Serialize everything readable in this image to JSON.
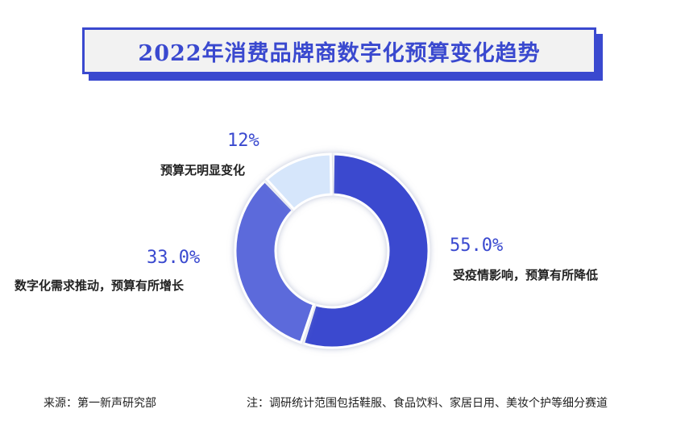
{
  "header": {
    "title": "2022年消费品牌商数字化预算变化趋势"
  },
  "chart_data": {
    "type": "pie",
    "title": "2022年消费品牌商数字化预算变化趋势",
    "donut": true,
    "categories": [
      "受疫情影响，预算有所降低",
      "数字化需求推动，预算有所增长",
      "预算无明显变化"
    ],
    "values": [
      55.0,
      33.0,
      12
    ],
    "value_labels": [
      "55.0%",
      "33.0%",
      "12%"
    ],
    "colors": [
      "#3a49cf",
      "#5b6bdb",
      "#d6e6fb"
    ]
  },
  "footer": {
    "source": "来源：第一新声研究部",
    "note": "注：调研统计范围包括鞋服、食品饮料、家居日用、美妆个护等细分赛道"
  }
}
